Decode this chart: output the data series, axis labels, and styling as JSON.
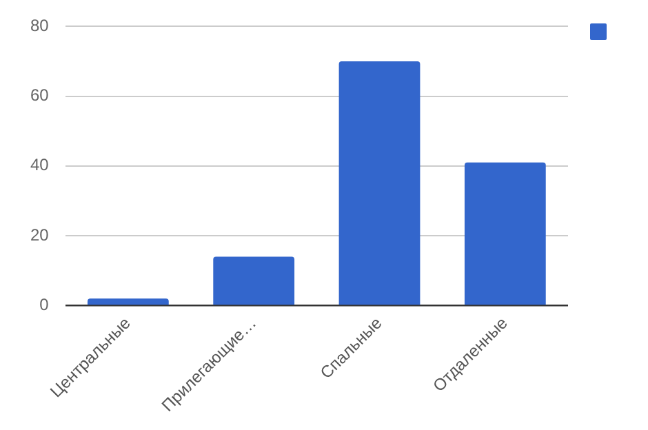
{
  "chart_data": {
    "type": "bar",
    "categories": [
      "Центральные",
      "Прилегающие…",
      "Спальные",
      "Отдаленные"
    ],
    "series": [
      {
        "color": "#3366cc",
        "values": [
          2,
          14,
          70,
          41
        ]
      }
    ],
    "ylim": [
      0,
      80
    ],
    "yticks": [
      0,
      20,
      40,
      60,
      80
    ],
    "grid": "y"
  }
}
